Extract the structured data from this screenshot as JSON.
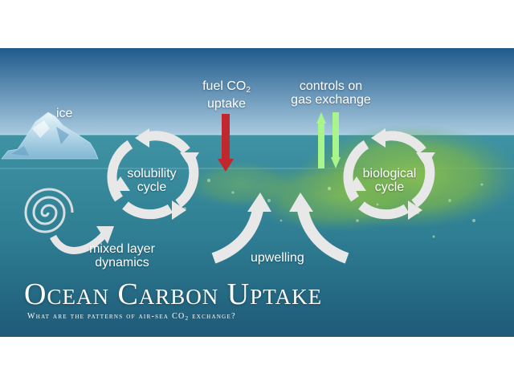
{
  "colors": {
    "sky_top": "#1f5a8c",
    "sky_bottom": "#8fbad6",
    "ocean_top": "#3b8fa0",
    "ocean_bottom": "#21607c",
    "bloom": "#7fb84a",
    "fuel_arrow": "#c0282e",
    "exchange_arrow": "#a8f58c",
    "cycle_arrow": "#e8e8e8"
  },
  "labels": {
    "ice": "ice",
    "fuel_line1": "fuel CO",
    "fuel_sub": "2",
    "fuel_line2": "uptake",
    "controls_line1": "controls on",
    "controls_line2": "gas exchange",
    "solubility_line1": "solubility",
    "solubility_line2": "cycle",
    "biological_line1": "biological",
    "biological_line2": "cycle",
    "mixed_line1": "mixed layer",
    "mixed_line2": "dynamics",
    "upwelling": "upwelling"
  },
  "title": {
    "main": "Ocean Carbon Uptake",
    "subtitle_pre": "What are the patterns of air-sea CO",
    "subtitle_sub": "2",
    "subtitle_post": " exchange?"
  }
}
